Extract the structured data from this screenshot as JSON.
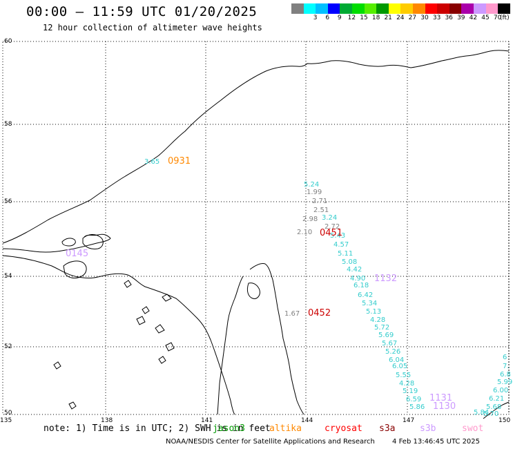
{
  "title": "00:00 – 11:59 UTC 01/20/2025",
  "subtitle": "12 hour collection of altimeter wave heights",
  "legend": {
    "unit": "(ft)",
    "entries": [
      {
        "label": "",
        "color": "#808080"
      },
      {
        "label": "3",
        "color": "#00ffff"
      },
      {
        "label": "6",
        "color": "#00c0ff"
      },
      {
        "label": "9",
        "color": "#0000ff"
      },
      {
        "label": "12",
        "color": "#00aa33"
      },
      {
        "label": "15",
        "color": "#00dd00"
      },
      {
        "label": "18",
        "color": "#55ee00"
      },
      {
        "label": "21",
        "color": "#009900"
      },
      {
        "label": "24",
        "color": "#ffff00"
      },
      {
        "label": "27",
        "color": "#ffcc00"
      },
      {
        "label": "30",
        "color": "#ff8800"
      },
      {
        "label": "33",
        "color": "#ff0000"
      },
      {
        "label": "36",
        "color": "#cc0000"
      },
      {
        "label": "39",
        "color": "#880000"
      },
      {
        "label": "42",
        "color": "#aa00aa"
      },
      {
        "label": "45",
        "color": "#cc99ff"
      },
      {
        "label": "70",
        "color": "#ff99cc"
      },
      {
        "label": "",
        "color": "#000000"
      }
    ]
  },
  "axes": {
    "y_ticks": [
      "60",
      "58",
      "56",
      "54",
      "52",
      "50"
    ],
    "x_ticks": [
      "135",
      "138",
      "141",
      "144",
      "147",
      "150"
    ]
  },
  "labels": {
    "swh": [
      {
        "text": "3.65",
        "color": "#33cccc"
      },
      {
        "text": "5.24",
        "color": "#33cccc"
      },
      {
        "text": "1.99",
        "color": "#808080"
      },
      {
        "text": "2.71",
        "color": "#808080"
      },
      {
        "text": "2.51",
        "color": "#808080"
      },
      {
        "text": "3.24",
        "color": "#33cccc"
      },
      {
        "text": "2.98",
        "color": "#808080"
      },
      {
        "text": "2.72",
        "color": "#808080"
      },
      {
        "text": "2.10",
        "color": "#808080"
      },
      {
        "text": "5.43",
        "color": "#33cccc"
      },
      {
        "text": "4.57",
        "color": "#33cccc"
      },
      {
        "text": "5.11",
        "color": "#33cccc"
      },
      {
        "text": "5.08",
        "color": "#33cccc"
      },
      {
        "text": "4.42",
        "color": "#33cccc"
      },
      {
        "text": "4.90",
        "color": "#33cccc"
      },
      {
        "text": "6.18",
        "color": "#33cccc"
      },
      {
        "text": "6.42",
        "color": "#33cccc"
      },
      {
        "text": "5.34",
        "color": "#33cccc"
      },
      {
        "text": "5.13",
        "color": "#33cccc"
      },
      {
        "text": "4.28",
        "color": "#33cccc"
      },
      {
        "text": "5.72",
        "color": "#33cccc"
      },
      {
        "text": "5.69",
        "color": "#33cccc"
      },
      {
        "text": "5.67",
        "color": "#33cccc"
      },
      {
        "text": "5.26",
        "color": "#33cccc"
      },
      {
        "text": "6.04",
        "color": "#33cccc"
      },
      {
        "text": "6.05",
        "color": "#33cccc"
      },
      {
        "text": "5.55",
        "color": "#33cccc"
      },
      {
        "text": "4.28",
        "color": "#33cccc"
      },
      {
        "text": "5.19",
        "color": "#33cccc"
      },
      {
        "text": "6.59",
        "color": "#33cccc"
      },
      {
        "text": "5.86",
        "color": "#33cccc"
      },
      {
        "text": "1.67",
        "color": "#808080"
      },
      {
        "text": "5.84",
        "color": "#33cccc"
      },
      {
        "text": "7.",
        "color": "#33cccc"
      },
      {
        "text": "6.8",
        "color": "#33cccc"
      },
      {
        "text": "5.99",
        "color": "#33cccc"
      },
      {
        "text": "6.00",
        "color": "#33cccc"
      },
      {
        "text": "6.21",
        "color": "#33cccc"
      },
      {
        "text": "5.68",
        "color": "#33cccc"
      },
      {
        "text": "5.70",
        "color": "#33cccc"
      },
      {
        "text": "6",
        "color": "#33cccc"
      }
    ],
    "times": [
      {
        "text": "0931",
        "color": "#ff8800"
      },
      {
        "text": "0451",
        "color": "#cc0000"
      },
      {
        "text": "0452",
        "color": "#cc0000"
      },
      {
        "text": "0145",
        "color": "#cc99ff"
      },
      {
        "text": "1132",
        "color": "#cc99ff"
      },
      {
        "text": "1131",
        "color": "#cc99ff"
      },
      {
        "text": "1130",
        "color": "#cc99ff"
      }
    ]
  },
  "note": "note: 1) Time is in UTC; 2) SWH is in feet",
  "satellites": [
    {
      "name": "jason3",
      "color": "#009900"
    },
    {
      "name": "altika",
      "color": "#ff8800"
    },
    {
      "name": "cryosat",
      "color": "#ff0000"
    },
    {
      "name": "s3a",
      "color": "#880000"
    },
    {
      "name": "s3b",
      "color": "#cc99ff"
    },
    {
      "name": "swot",
      "color": "#ff99cc"
    }
  ],
  "footer": {
    "credit": "NOAA/NESDIS Center for Satellite Applications and Research",
    "timestamp": "4 Feb 13:46:45 UTC 2025"
  }
}
